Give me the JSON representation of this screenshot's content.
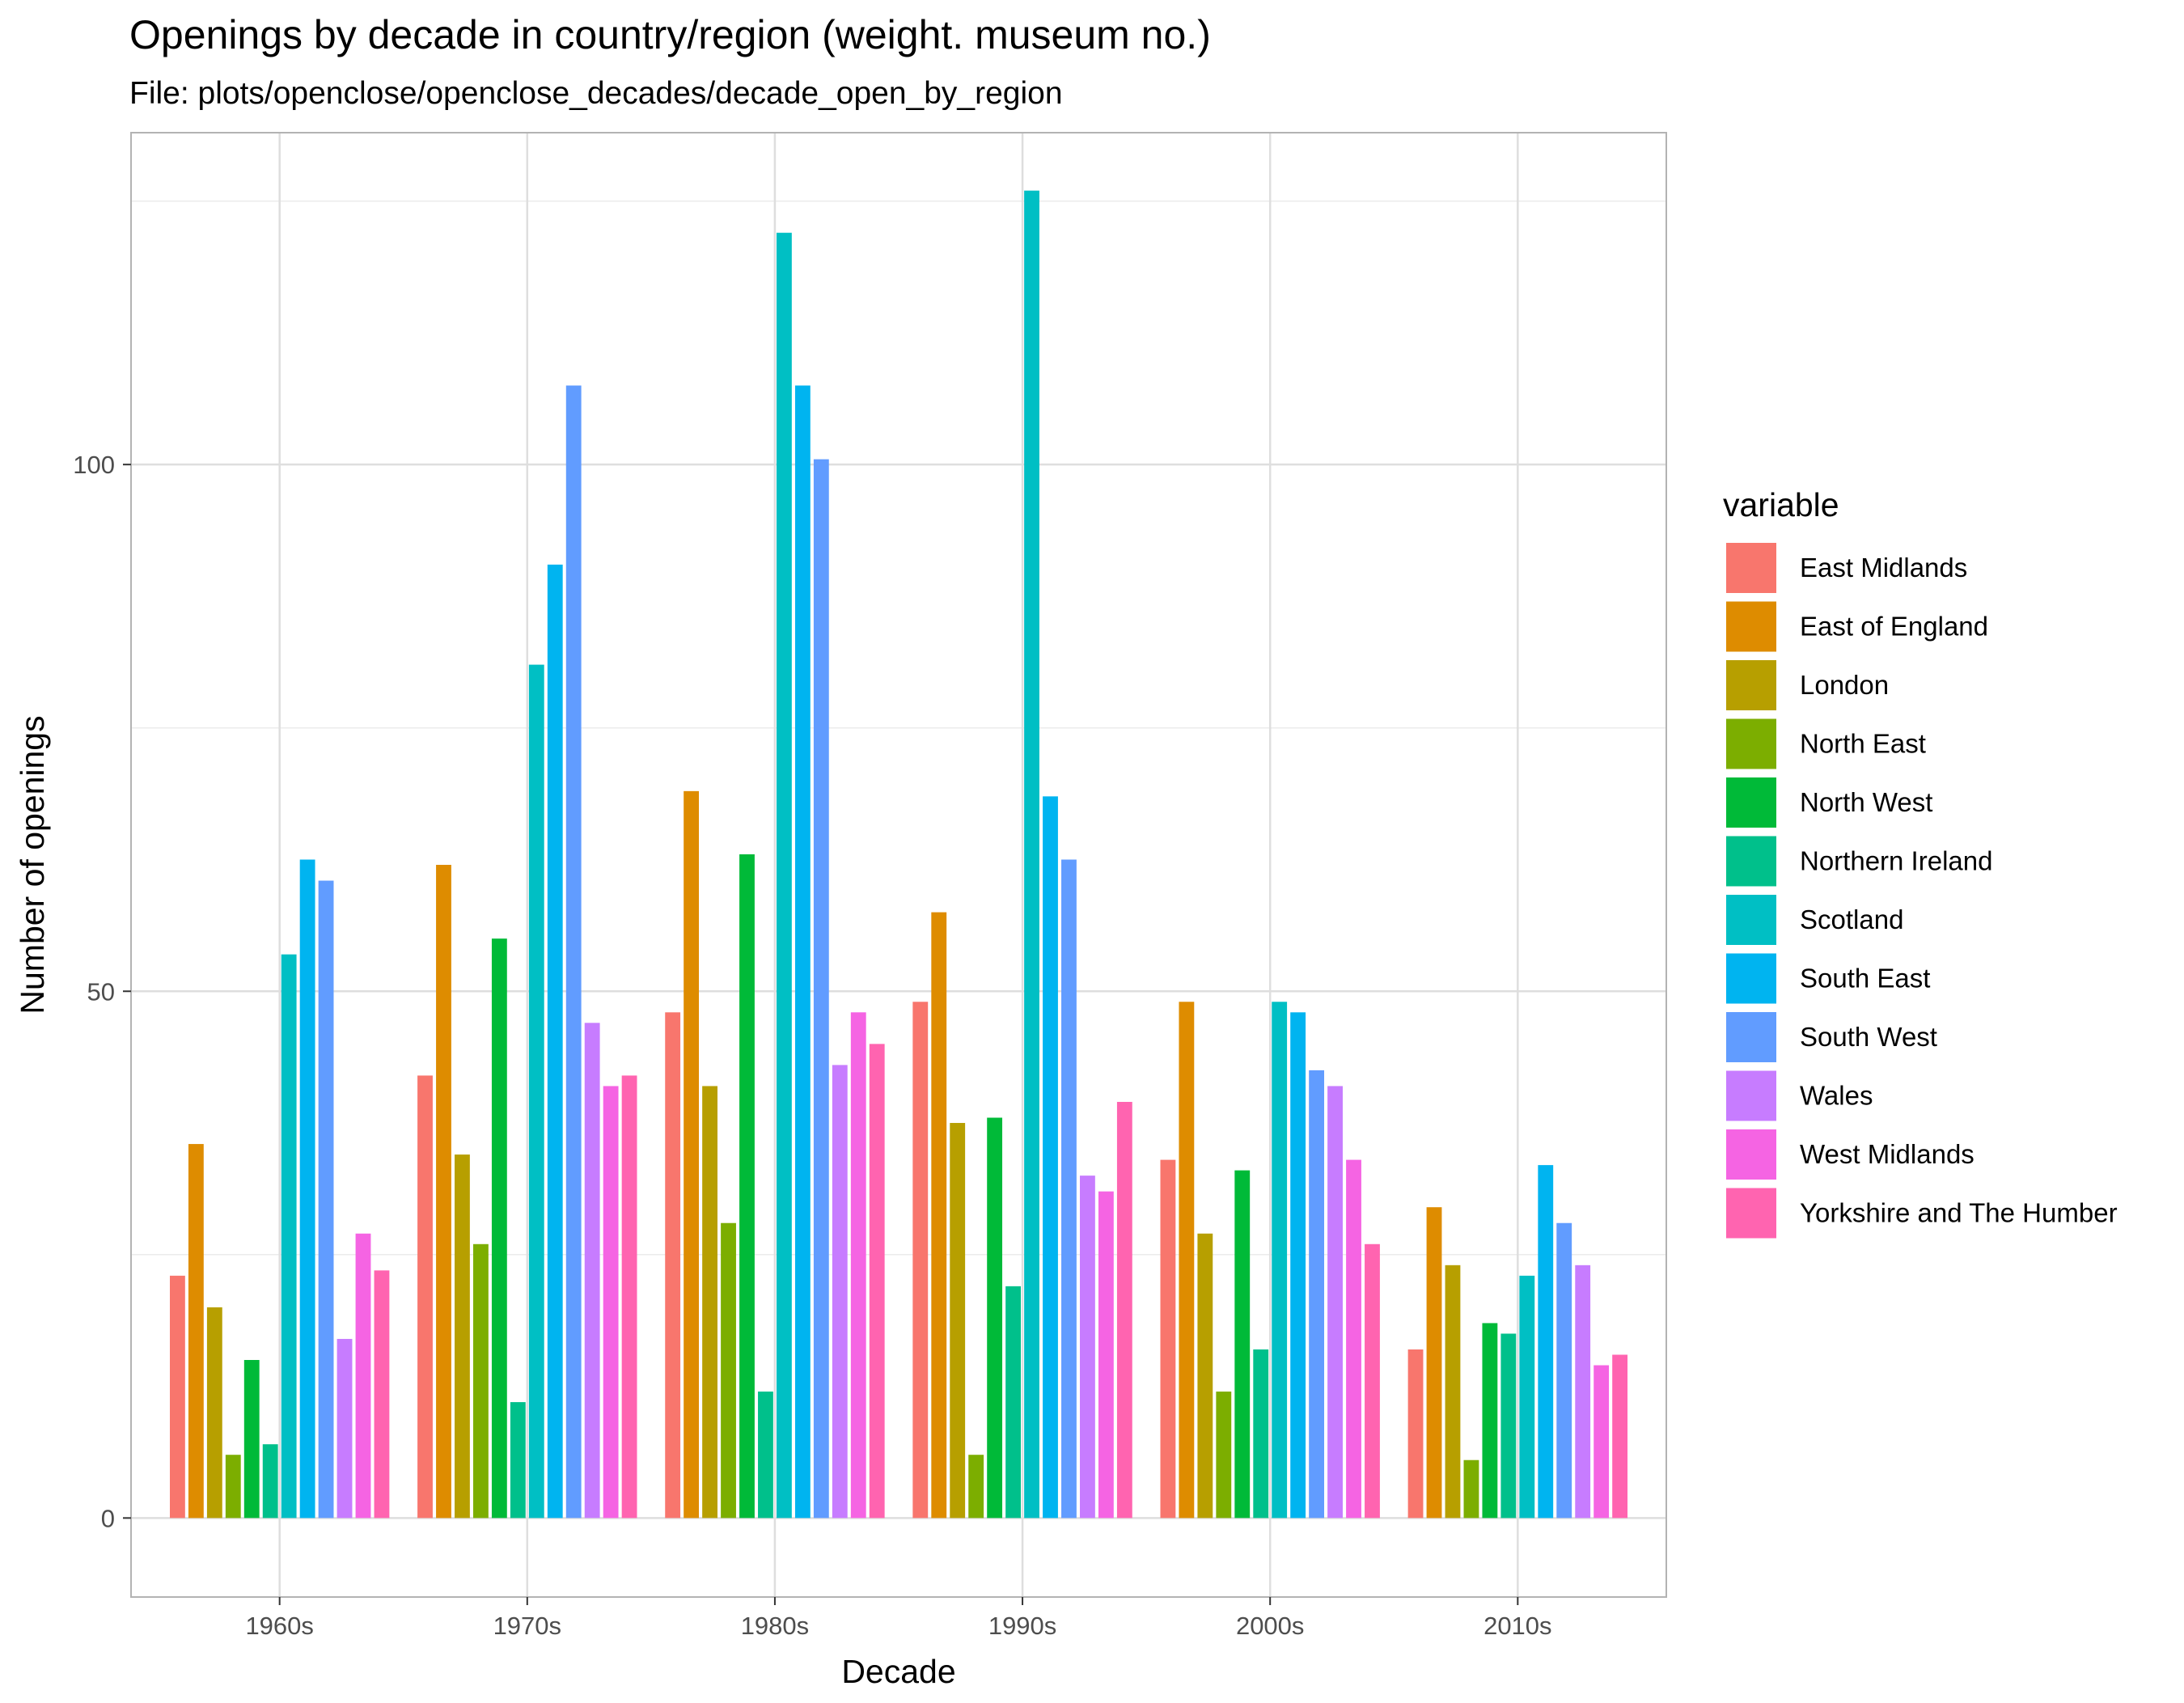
{
  "chart_data": {
    "type": "bar",
    "title": "Openings by decade in country/region (weight. museum no.)",
    "subtitle": "File: plots/openclose/openclose_decades/decade_open_by_region",
    "xlabel": "Decade",
    "ylabel": "Number of openings",
    "ylim": [
      -7.5,
      131.5
    ],
    "y_ticks": [
      0,
      50,
      100
    ],
    "y_minor_ticks": [
      25,
      75,
      125
    ],
    "grid": true,
    "legend_title": "variable",
    "legend_position": "right",
    "categories": [
      "1960s",
      "1970s",
      "1980s",
      "1990s",
      "2000s",
      "2010s"
    ],
    "series": [
      {
        "name": "East Midlands",
        "color": "#F8766D",
        "values": [
          23,
          42,
          48,
          49,
          34,
          16
        ]
      },
      {
        "name": "East of England",
        "color": "#DE8C00",
        "values": [
          35.5,
          62,
          69,
          57.5,
          49,
          29.5
        ]
      },
      {
        "name": "London",
        "color": "#B79F00",
        "values": [
          20,
          34.5,
          41,
          37.5,
          27,
          24
        ]
      },
      {
        "name": "North East",
        "color": "#7CAE00",
        "values": [
          6,
          26,
          28,
          6,
          12,
          5.5
        ]
      },
      {
        "name": "North West",
        "color": "#00BA38",
        "values": [
          15,
          55,
          63,
          38,
          33,
          18.5
        ]
      },
      {
        "name": "Northern Ireland",
        "color": "#00C08B",
        "values": [
          7,
          11,
          12,
          22,
          16,
          17.5
        ]
      },
      {
        "name": "Scotland",
        "color": "#00BFC4",
        "values": [
          53.5,
          81,
          122,
          126,
          49,
          23
        ]
      },
      {
        "name": "South East",
        "color": "#00B4F0",
        "values": [
          62.5,
          90.5,
          107.5,
          68.5,
          48,
          33.5
        ]
      },
      {
        "name": "South West",
        "color": "#619CFF",
        "values": [
          60.5,
          107.5,
          100.5,
          62.5,
          42.5,
          28
        ]
      },
      {
        "name": "Wales",
        "color": "#C77CFF",
        "values": [
          17,
          47,
          43,
          32.5,
          41,
          24
        ]
      },
      {
        "name": "West Midlands",
        "color": "#F564E3",
        "values": [
          27,
          41,
          48,
          31,
          34,
          14.5
        ]
      },
      {
        "name": "Yorkshire and The Humber",
        "color": "#FF64B0",
        "values": [
          23.5,
          42,
          45,
          39.5,
          26,
          15.5
        ]
      }
    ]
  }
}
